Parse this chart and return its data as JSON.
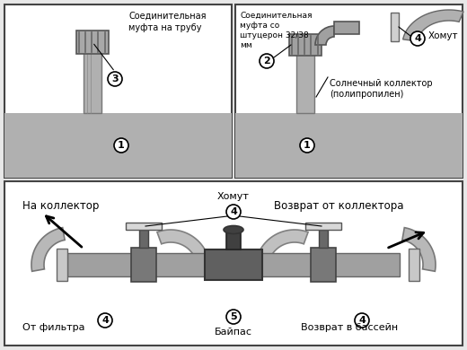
{
  "bg_color": "#e8e8e8",
  "panel_bg": "#ffffff",
  "water_color": "#b8b8b8",
  "pipe_gray": "#a0a0a0",
  "pipe_dark": "#606060",
  "pipe_med": "#808080",
  "text_color": "#000000",
  "title_top_left": "Соединительная\nмуфта на трубу",
  "text_connector_pipe": "Соединительная\nмуфта со\nштуцерон 32/38\nмм",
  "text_khonut": "Хомут",
  "text_solar": "Солнечный коллектор\n(полипропилен)",
  "text_na_koll": "На коллектор",
  "text_ot_filtra": "От фильтра",
  "text_vozvrat_koll": "Возврат от коллектора",
  "text_vozvrat_bass": "Возврат в бассейн",
  "text_bajpas": "Байпас"
}
